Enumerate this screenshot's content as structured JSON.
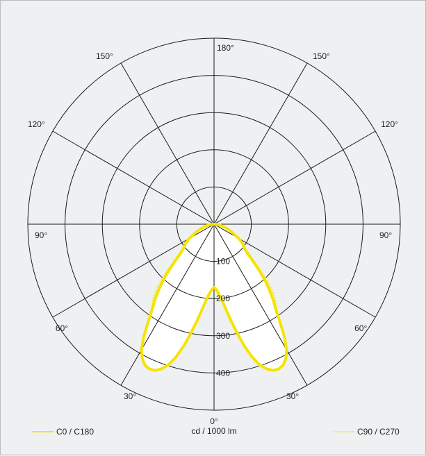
{
  "chart_data": {
    "type": "polar",
    "unit_label": "cd / 1000 lm",
    "radial_ticks": [
      100,
      200,
      300,
      400,
      500
    ],
    "radial_tick_labels": [
      "100",
      "200",
      "300",
      "400"
    ],
    "angle_labels": [
      {
        "text": "0°",
        "angle": 0
      },
      {
        "text": "30°",
        "angle": 30
      },
      {
        "text": "30°",
        "angle": -30
      },
      {
        "text": "60°",
        "angle": 60
      },
      {
        "text": "60°",
        "angle": -60
      },
      {
        "text": "90°",
        "angle": 90
      },
      {
        "text": "90°",
        "angle": -90
      },
      {
        "text": "120°",
        "angle": 120
      },
      {
        "text": "120°",
        "angle": -120
      },
      {
        "text": "150°",
        "angle": 150
      },
      {
        "text": "150°",
        "angle": -150
      },
      {
        "text": "180°",
        "angle": 180
      }
    ],
    "colors": {
      "curve": "#f5e400",
      "grid": "#1a1a1a",
      "background": "#eef0f2",
      "fill": "#ffffff"
    },
    "series": [
      {
        "name": "C0 / C180",
        "style": "solid",
        "points": [
          [
            0,
            170
          ],
          [
            2,
            176
          ],
          [
            4,
            188
          ],
          [
            6,
            206
          ],
          [
            8,
            232
          ],
          [
            10,
            264
          ],
          [
            12,
            300
          ],
          [
            14,
            338
          ],
          [
            16,
            372
          ],
          [
            18,
            398
          ],
          [
            20,
            414
          ],
          [
            22,
            424
          ],
          [
            24,
            426
          ],
          [
            26,
            422
          ],
          [
            28,
            410
          ],
          [
            30,
            390
          ],
          [
            32,
            356
          ],
          [
            34,
            316
          ],
          [
            36,
            282
          ],
          [
            38,
            258
          ],
          [
            40,
            232
          ],
          [
            42,
            206
          ],
          [
            44,
            178
          ],
          [
            46,
            150
          ],
          [
            48,
            128
          ],
          [
            50,
            112
          ],
          [
            52,
            102
          ],
          [
            54,
            98
          ],
          [
            56,
            92
          ],
          [
            58,
            84
          ],
          [
            60,
            76
          ],
          [
            62,
            66
          ],
          [
            66,
            52
          ],
          [
            70,
            40
          ],
          [
            75,
            28
          ],
          [
            80,
            18
          ],
          [
            85,
            10
          ],
          [
            90,
            4
          ]
        ]
      },
      {
        "name": "C90 / C270",
        "style": "dotted",
        "points": [
          [
            0,
            170
          ],
          [
            2,
            176
          ],
          [
            4,
            188
          ],
          [
            6,
            206
          ],
          [
            8,
            232
          ],
          [
            10,
            264
          ],
          [
            12,
            300
          ],
          [
            14,
            338
          ],
          [
            16,
            372
          ],
          [
            18,
            398
          ],
          [
            20,
            414
          ],
          [
            22,
            424
          ],
          [
            24,
            426
          ],
          [
            26,
            422
          ],
          [
            28,
            410
          ],
          [
            30,
            390
          ],
          [
            32,
            356
          ],
          [
            34,
            316
          ],
          [
            36,
            288
          ],
          [
            38,
            270
          ],
          [
            40,
            252
          ],
          [
            42,
            226
          ],
          [
            44,
            196
          ],
          [
            46,
            168
          ],
          [
            48,
            142
          ],
          [
            50,
            122
          ],
          [
            52,
            108
          ],
          [
            54,
            98
          ],
          [
            56,
            92
          ],
          [
            58,
            84
          ],
          [
            60,
            76
          ],
          [
            62,
            66
          ],
          [
            66,
            52
          ],
          [
            70,
            40
          ],
          [
            75,
            28
          ],
          [
            80,
            18
          ],
          [
            85,
            10
          ],
          [
            90,
            4
          ]
        ]
      }
    ],
    "legend": [
      {
        "label": "C0 / C180",
        "style": "solid",
        "placement": "bottom-left"
      },
      {
        "label": "C90 / C270",
        "style": "dotted",
        "placement": "bottom-right"
      }
    ]
  }
}
